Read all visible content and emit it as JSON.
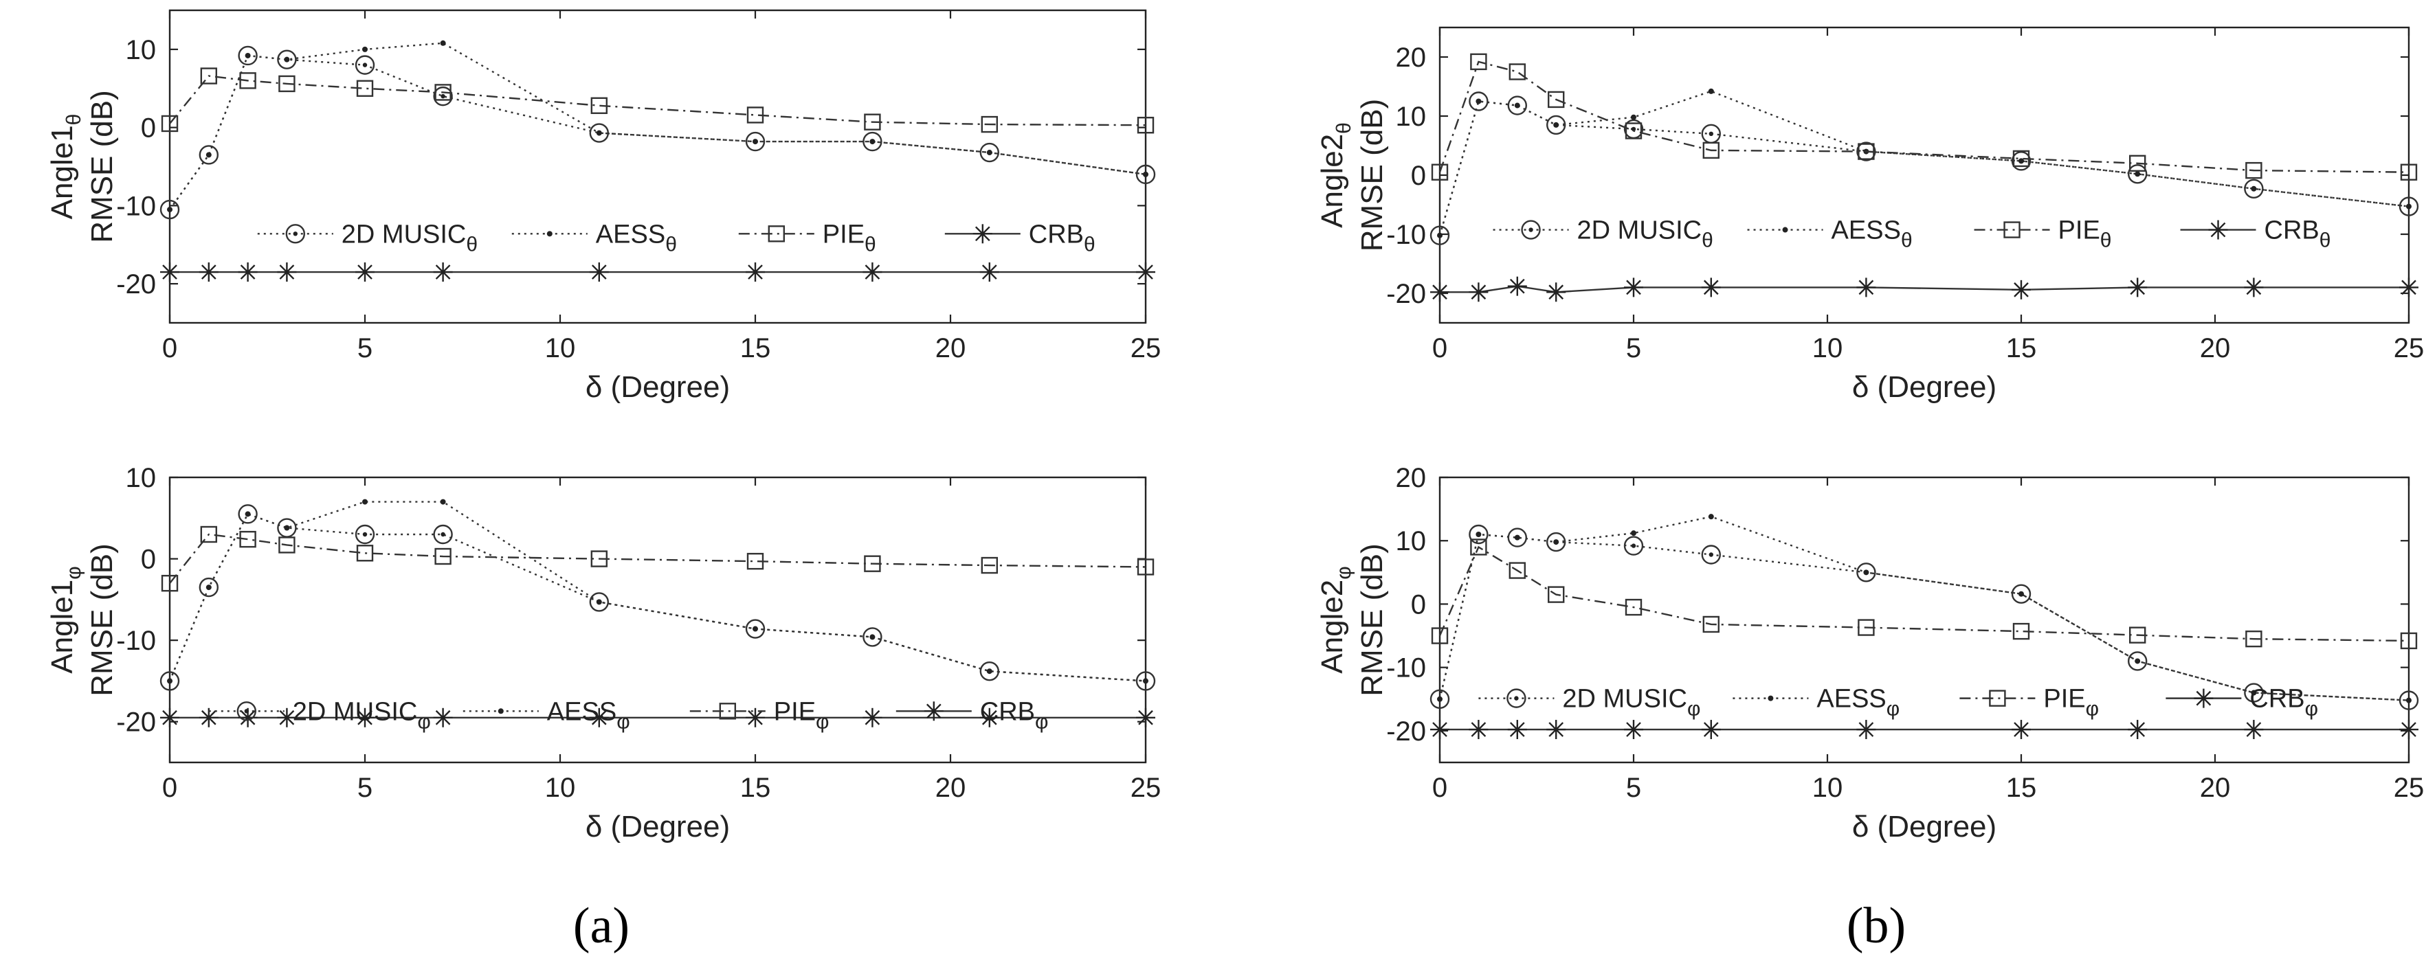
{
  "chart_data": [
    {
      "id": "a-top",
      "type": "line",
      "panel": "a",
      "ylabel_line1": "Angle1",
      "ylabel_sub": "θ",
      "ylabel_line2": "RMSE (dB)",
      "xlabel": "δ (Degree)",
      "xlim": [
        0,
        25
      ],
      "ylim": [
        -25,
        15
      ],
      "xticks": [
        0,
        5,
        10,
        15,
        20,
        25
      ],
      "yticks": [
        -20,
        -10,
        0,
        10
      ],
      "legend_position": "lower-middle",
      "series": [
        {
          "name": "2D MUSIC",
          "sub": "θ",
          "style": "dotted",
          "marker": "circle-dot",
          "x": [
            0,
            1,
            2,
            3,
            5,
            7,
            11,
            15,
            18,
            21,
            25
          ],
          "values": [
            -10.5,
            -3.5,
            9.2,
            8.7,
            8.0,
            4.0,
            -0.7,
            -1.8,
            -1.8,
            -3.2,
            -6.0
          ]
        },
        {
          "name": "AESS",
          "sub": "θ",
          "style": "dotted",
          "marker": "dot",
          "x": [
            0,
            1,
            2,
            3,
            5,
            7,
            11,
            15,
            18,
            21,
            25
          ],
          "values": [
            -10.5,
            -3.5,
            9.2,
            8.7,
            10.0,
            10.8,
            -0.7,
            -1.8,
            -1.8,
            -3.2,
            -6.0
          ]
        },
        {
          "name": "PIE",
          "sub": "θ",
          "style": "dashdot",
          "marker": "square",
          "x": [
            0,
            1,
            2,
            3,
            5,
            7,
            11,
            15,
            18,
            21,
            25
          ],
          "values": [
            0.5,
            6.6,
            6.0,
            5.6,
            5.0,
            4.5,
            2.8,
            1.6,
            0.7,
            0.4,
            0.3
          ]
        },
        {
          "name": "CRB",
          "sub": "θ",
          "style": "solid",
          "marker": "star",
          "x": [
            0,
            1,
            2,
            3,
            5,
            7,
            11,
            15,
            18,
            21,
            25
          ],
          "values": [
            -18.5,
            -18.5,
            -18.5,
            -18.5,
            -18.5,
            -18.5,
            -18.5,
            -18.5,
            -18.5,
            -18.5,
            -18.5
          ]
        }
      ]
    },
    {
      "id": "a-bottom",
      "type": "line",
      "panel": "a",
      "ylabel_line1": "Angle1",
      "ylabel_sub": "φ",
      "ylabel_line2": "RMSE (dB)",
      "xlabel": "δ (Degree)",
      "xlim": [
        0,
        25
      ],
      "ylim": [
        -25,
        10
      ],
      "xticks": [
        0,
        5,
        10,
        15,
        20,
        25
      ],
      "yticks": [
        -20,
        -10,
        0,
        10
      ],
      "legend_position": "lower-middle",
      "series": [
        {
          "name": "2D MUSIC",
          "sub": "φ",
          "style": "dotted",
          "marker": "circle-dot",
          "x": [
            0,
            1,
            2,
            3,
            5,
            7,
            11,
            15,
            18,
            21,
            25
          ],
          "values": [
            -15.0,
            -3.5,
            5.5,
            3.8,
            3.0,
            3.0,
            -5.3,
            -8.6,
            -9.6,
            -13.8,
            -15.0
          ]
        },
        {
          "name": "AESS",
          "sub": "φ",
          "style": "dotted",
          "marker": "dot",
          "x": [
            0,
            1,
            2,
            3,
            5,
            7,
            11,
            15,
            18,
            21,
            25
          ],
          "values": [
            -15.0,
            -3.5,
            5.5,
            3.8,
            7.0,
            7.0,
            -5.3,
            -8.6,
            -9.6,
            -13.8,
            -15.0
          ]
        },
        {
          "name": "PIE",
          "sub": "φ",
          "style": "dashdot",
          "marker": "square",
          "x": [
            0,
            1,
            2,
            3,
            5,
            7,
            11,
            15,
            18,
            21,
            25
          ],
          "values": [
            -3.0,
            3.0,
            2.4,
            1.7,
            0.7,
            0.3,
            0.0,
            -0.3,
            -0.6,
            -0.8,
            -1.0
          ]
        },
        {
          "name": "CRB",
          "sub": "φ",
          "style": "solid",
          "marker": "star",
          "x": [
            0,
            1,
            2,
            3,
            5,
            7,
            11,
            15,
            18,
            21,
            25
          ],
          "values": [
            -19.5,
            -19.5,
            -19.5,
            -19.5,
            -19.5,
            -19.5,
            -19.5,
            -19.5,
            -19.5,
            -19.5,
            -19.5
          ]
        }
      ]
    },
    {
      "id": "b-top",
      "type": "line",
      "panel": "b",
      "ylabel_line1": "Angle2",
      "ylabel_sub": "θ",
      "ylabel_line2": "RMSE (dB)",
      "xlabel": "δ (Degree)",
      "xlim": [
        0,
        25
      ],
      "ylim": [
        -25,
        25
      ],
      "xticks": [
        0,
        5,
        10,
        15,
        20,
        25
      ],
      "yticks": [
        -20,
        -10,
        0,
        10,
        20
      ],
      "legend_position": "lower-middle",
      "series": [
        {
          "name": "2D MUSIC",
          "sub": "θ",
          "style": "dotted",
          "marker": "circle-dot",
          "x": [
            0,
            1,
            2,
            3,
            5,
            7,
            11,
            15,
            18,
            21,
            25
          ],
          "values": [
            -10.2,
            12.5,
            11.8,
            8.5,
            7.8,
            7.0,
            4.0,
            2.4,
            0.2,
            -2.3,
            -5.3
          ]
        },
        {
          "name": "AESS",
          "sub": "θ",
          "style": "dotted",
          "marker": "dot",
          "x": [
            0,
            1,
            2,
            3,
            5,
            7,
            11,
            15,
            18,
            21,
            25
          ],
          "values": [
            -10.2,
            12.5,
            11.8,
            8.5,
            9.8,
            14.2,
            4.0,
            2.4,
            0.2,
            -2.3,
            -5.3
          ]
        },
        {
          "name": "PIE",
          "sub": "θ",
          "style": "dashdot",
          "marker": "square",
          "x": [
            0,
            1,
            2,
            3,
            5,
            7,
            11,
            15,
            18,
            21,
            25
          ],
          "values": [
            0.5,
            19.2,
            17.5,
            12.8,
            7.5,
            4.2,
            4.0,
            2.8,
            2.0,
            0.8,
            0.5
          ]
        },
        {
          "name": "CRB",
          "sub": "θ",
          "style": "solid",
          "marker": "star",
          "x": [
            0,
            1,
            2,
            3,
            5,
            7,
            11,
            15,
            18,
            21,
            25
          ],
          "values": [
            -19.8,
            -19.8,
            -18.8,
            -19.8,
            -19.0,
            -19.0,
            -19.0,
            -19.4,
            -19.0,
            -19.0,
            -19.0
          ]
        }
      ]
    },
    {
      "id": "b-bottom",
      "type": "line",
      "panel": "b",
      "ylabel_line1": "Angle2",
      "ylabel_sub": "φ",
      "ylabel_line2": "RMSE (dB)",
      "xlabel": "δ (Degree)",
      "xlim": [
        0,
        25
      ],
      "ylim": [
        -25,
        20
      ],
      "xticks": [
        0,
        5,
        10,
        15,
        20,
        25
      ],
      "yticks": [
        -20,
        -10,
        0,
        10,
        20
      ],
      "legend_position": "lower-middle",
      "series": [
        {
          "name": "2D MUSIC",
          "sub": "φ",
          "style": "dotted",
          "marker": "circle-dot",
          "x": [
            0,
            1,
            2,
            3,
            5,
            7,
            11,
            15,
            18,
            21,
            25
          ],
          "values": [
            -15.0,
            11.0,
            10.5,
            9.8,
            9.2,
            7.8,
            5.0,
            1.6,
            -9.0,
            -14.0,
            -15.2
          ]
        },
        {
          "name": "AESS",
          "sub": "φ",
          "style": "dotted",
          "marker": "dot",
          "x": [
            0,
            1,
            2,
            3,
            5,
            7,
            11,
            15,
            18,
            21,
            25
          ],
          "values": [
            -15.0,
            11.0,
            10.5,
            9.8,
            11.2,
            13.8,
            5.0,
            1.6,
            -9.0,
            -14.0,
            -15.2
          ]
        },
        {
          "name": "PIE",
          "sub": "φ",
          "style": "dashdot",
          "marker": "square",
          "x": [
            0,
            1,
            2,
            3,
            5,
            7,
            11,
            15,
            18,
            21,
            25
          ],
          "values": [
            -5.0,
            9.0,
            5.3,
            1.5,
            -0.5,
            -3.2,
            -3.7,
            -4.3,
            -4.9,
            -5.5,
            -5.8
          ]
        },
        {
          "name": "CRB",
          "sub": "φ",
          "style": "solid",
          "marker": "star",
          "x": [
            0,
            1,
            2,
            3,
            5,
            7,
            11,
            15,
            18,
            21,
            25
          ],
          "values": [
            -19.8,
            -19.8,
            -19.8,
            -19.8,
            -19.8,
            -19.8,
            -19.8,
            -19.8,
            -19.8,
            -19.8,
            -19.8
          ]
        }
      ]
    }
  ],
  "panel_labels": {
    "a": "(a)",
    "b": "(b)"
  }
}
